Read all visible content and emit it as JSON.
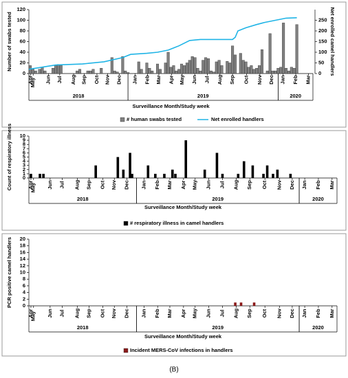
{
  "chart_data": [
    {
      "type": "combo",
      "ylabel": "Number of swabs tested",
      "y2label": "Net enrolled camel handlers",
      "xlabel": "Surveillance Month/Study week",
      "xlim": [
        0,
        106
      ],
      "ylim": [
        0,
        120
      ],
      "yticks": [
        0,
        20,
        40,
        60,
        80,
        100,
        120
      ],
      "y2lim": [
        0,
        300
      ],
      "y2ticks": [
        0,
        50,
        100,
        150,
        200,
        250
      ],
      "xticks": [
        {
          "value": 0.7,
          "label": "Apr"
        },
        {
          "value": 1.6,
          "label": "May"
        },
        {
          "value": 7.3,
          "label": "Jun"
        },
        {
          "value": 11.5,
          "label": "Jul"
        },
        {
          "value": 16.7,
          "label": "Aug"
        },
        {
          "value": 20.7,
          "label": "Sep"
        },
        {
          "value": 25.4,
          "label": "Oct"
        },
        {
          "value": 29.4,
          "label": "Nov"
        },
        {
          "value": 33.7,
          "label": "Dec"
        },
        {
          "value": 39.6,
          "label": "Jan"
        },
        {
          "value": 44.3,
          "label": "Feb"
        },
        {
          "value": 48.5,
          "label": "Mar"
        },
        {
          "value": 53.2,
          "label": "Apr"
        },
        {
          "value": 57.2,
          "label": "May"
        },
        {
          "value": 61.9,
          "label": "Jun"
        },
        {
          "value": 66.6,
          "label": "Jul"
        },
        {
          "value": 71.3,
          "label": "Aug"
        },
        {
          "value": 76,
          "label": "Sep"
        },
        {
          "value": 81.2,
          "label": "Oct"
        },
        {
          "value": 86.2,
          "label": "Nov"
        },
        {
          "value": 90.6,
          "label": "Dec"
        },
        {
          "value": 94.9,
          "label": "Jan"
        },
        {
          "value": 99.6,
          "label": "Feb"
        },
        {
          "value": 104.3,
          "label": "Mar"
        }
      ],
      "groups": [
        {
          "label": "2018",
          "from": 0,
          "to": 37
        },
        {
          "label": "2019",
          "from": 37,
          "to": 93
        },
        {
          "label": "2020",
          "from": 93,
          "to": 106
        }
      ],
      "series": [
        {
          "name": "# human swabs tested",
          "type": "bar",
          "color": "#808080",
          "x": [
            0.5,
            1.5,
            2.5,
            4,
            5,
            6,
            9,
            10,
            11,
            12,
            18,
            19,
            22,
            23,
            24,
            27,
            31,
            32,
            33,
            35,
            36,
            37,
            41,
            42,
            44,
            45,
            46,
            48,
            49,
            51,
            52,
            53,
            54,
            55,
            56,
            57,
            58,
            59,
            60,
            61,
            62,
            63,
            64,
            65,
            66,
            67,
            68,
            69,
            70,
            71,
            72,
            74,
            75,
            76,
            77,
            79,
            80,
            81,
            82,
            83,
            84,
            85,
            86,
            87,
            89,
            90,
            91,
            92,
            93,
            94,
            95,
            96,
            97,
            98,
            99,
            100
          ],
          "values": [
            15,
            8,
            5,
            8,
            12,
            5,
            10,
            15,
            17,
            15,
            5,
            8,
            5,
            5,
            8,
            10,
            30,
            5,
            3,
            32,
            5,
            2,
            22,
            8,
            20,
            10,
            5,
            18,
            8,
            20,
            40,
            12,
            15,
            5,
            8,
            18,
            15,
            20,
            25,
            32,
            30,
            10,
            5,
            25,
            30,
            28,
            5,
            3,
            22,
            25,
            15,
            23,
            20,
            52,
            35,
            38,
            25,
            22,
            12,
            15,
            8,
            10,
            15,
            45,
            5,
            75,
            5,
            5,
            10,
            12,
            95,
            10,
            5,
            12,
            10,
            92
          ]
        },
        {
          "name": "Net enrolled handlers",
          "type": "line",
          "color": "#1fb4e6",
          "axis": "y2",
          "x": [
            0,
            5,
            10,
            20,
            28,
            35,
            38,
            44,
            48,
            52,
            56,
            60,
            64,
            76,
            77,
            78,
            81,
            85,
            88,
            92,
            96,
            100
          ],
          "values": [
            20,
            30,
            40,
            45,
            55,
            75,
            90,
            95,
            100,
            110,
            130,
            155,
            160,
            160,
            170,
            200,
            215,
            230,
            240,
            250,
            260,
            262
          ]
        }
      ]
    },
    {
      "type": "bar",
      "ylabel": "Count of respiratory illness",
      "xlabel": "Surveillance Month/Study week",
      "xlim": [
        0,
        106
      ],
      "ylim": [
        0,
        10
      ],
      "yticks": [
        0,
        1,
        2,
        3,
        4,
        5,
        6,
        7,
        8,
        9,
        10
      ],
      "xticks": [
        {
          "value": 0.7,
          "label": "Apr"
        },
        {
          "value": 1.6,
          "label": "May"
        },
        {
          "value": 7.3,
          "label": "Jun"
        },
        {
          "value": 11.5,
          "label": "Jul"
        },
        {
          "value": 16.7,
          "label": "Aug"
        },
        {
          "value": 20.7,
          "label": "Sep"
        },
        {
          "value": 25.4,
          "label": "Oct"
        },
        {
          "value": 29.4,
          "label": "Nov"
        },
        {
          "value": 33.7,
          "label": "Dec"
        },
        {
          "value": 39.6,
          "label": "Jan"
        },
        {
          "value": 44.3,
          "label": "Feb"
        },
        {
          "value": 48.5,
          "label": "Mar"
        },
        {
          "value": 53.2,
          "label": "Apr"
        },
        {
          "value": 57.2,
          "label": "May"
        },
        {
          "value": 61.9,
          "label": "Jun"
        },
        {
          "value": 66.6,
          "label": "Jul"
        },
        {
          "value": 71.3,
          "label": "Aug"
        },
        {
          "value": 76,
          "label": "Sep"
        },
        {
          "value": 81.2,
          "label": "Oct"
        },
        {
          "value": 86.2,
          "label": "Nov"
        },
        {
          "value": 90.6,
          "label": "Dec"
        },
        {
          "value": 94.9,
          "label": "Jan"
        },
        {
          "value": 99.6,
          "label": "Feb"
        },
        {
          "value": 104.3,
          "label": "Mar"
        }
      ],
      "groups": [
        {
          "label": "2018",
          "from": 0,
          "to": 37
        },
        {
          "label": "2019",
          "from": 37,
          "to": 93
        },
        {
          "label": "2020",
          "from": 93,
          "to": 106
        }
      ],
      "series": [
        {
          "name": "# respiratory illness in camel handlers",
          "type": "bar",
          "color": "#000000",
          "x": [
            0.7,
            3.8,
            5,
            23,
            30.6,
            32.5,
            34.8,
            35.5,
            41,
            43.5,
            46.6,
            49.4,
            50.4,
            54,
            60.5,
            64.7,
            66.6,
            72,
            74,
            77,
            80.7,
            82,
            84,
            85.5,
            90
          ],
          "values": [
            1,
            1,
            1,
            3,
            5,
            2,
            6,
            1,
            3,
            1,
            1,
            2,
            1,
            9,
            2,
            6,
            1,
            1,
            4,
            3,
            1,
            3,
            1,
            2,
            1
          ]
        }
      ]
    },
    {
      "type": "bar",
      "ylabel": "PCR positive camel handlers",
      "xlabel": "Surveillance Month/Study week",
      "xlim": [
        0,
        106
      ],
      "ylim": [
        0,
        20
      ],
      "yticks": [
        0,
        2,
        4,
        6,
        8,
        10,
        12,
        14,
        16,
        18,
        20
      ],
      "xticks": [
        {
          "value": 0.7,
          "label": "Apr"
        },
        {
          "value": 1.6,
          "label": "May"
        },
        {
          "value": 7.3,
          "label": "Jun"
        },
        {
          "value": 11.5,
          "label": "Jul"
        },
        {
          "value": 16.7,
          "label": "Aug"
        },
        {
          "value": 20.7,
          "label": "Sep"
        },
        {
          "value": 25.4,
          "label": "Oct"
        },
        {
          "value": 29.4,
          "label": "Nov"
        },
        {
          "value": 33.7,
          "label": "Dec"
        },
        {
          "value": 39.6,
          "label": "Jan"
        },
        {
          "value": 44.3,
          "label": "Feb"
        },
        {
          "value": 48.5,
          "label": "Mar"
        },
        {
          "value": 53.2,
          "label": "Apr"
        },
        {
          "value": 57.2,
          "label": "May"
        },
        {
          "value": 61.9,
          "label": "Jun"
        },
        {
          "value": 66.6,
          "label": "Jul"
        },
        {
          "value": 71.3,
          "label": "Aug"
        },
        {
          "value": 76,
          "label": "Sep"
        },
        {
          "value": 81.2,
          "label": "Oct"
        },
        {
          "value": 86.2,
          "label": "Nov"
        },
        {
          "value": 90.6,
          "label": "Dec"
        },
        {
          "value": 94.9,
          "label": "Jan"
        },
        {
          "value": 99.6,
          "label": "Feb"
        },
        {
          "value": 104.3,
          "label": "Mar"
        }
      ],
      "groups": [
        {
          "label": "2018",
          "from": 0,
          "to": 37
        },
        {
          "label": "2019",
          "from": 37,
          "to": 93
        },
        {
          "label": "2020",
          "from": 93,
          "to": 106
        }
      ],
      "series": [
        {
          "name": "Incident MERS-CoV infections in handlers",
          "type": "bar",
          "color": "#8b1a1a",
          "x": [
            71,
            73,
            77.5
          ],
          "values": [
            1,
            1,
            1
          ]
        }
      ]
    }
  ],
  "caption": "(B)"
}
